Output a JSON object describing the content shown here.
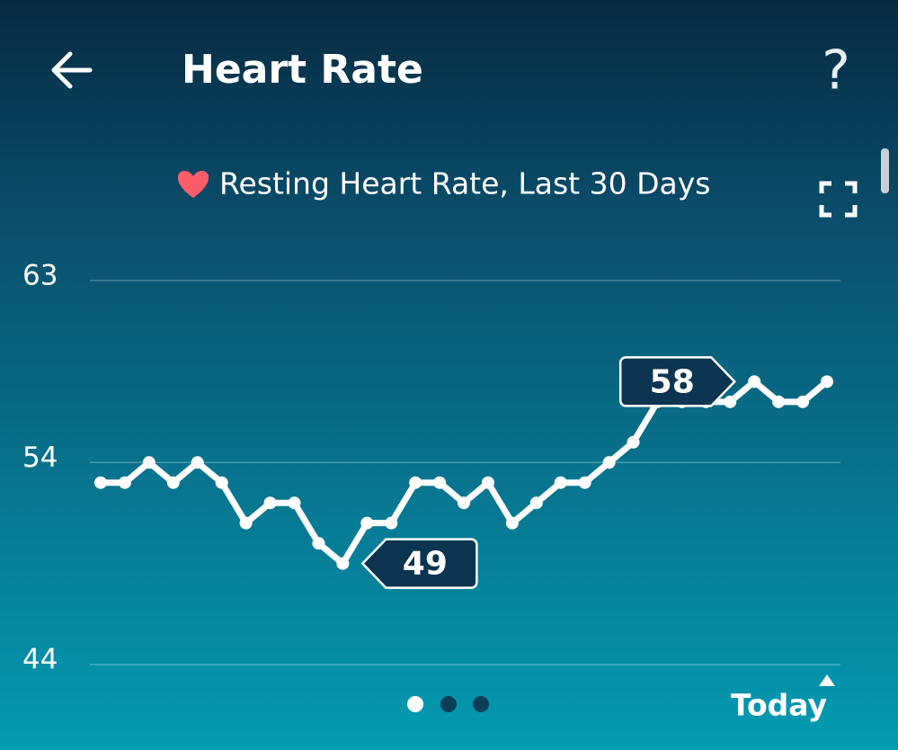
{
  "header": {
    "title": "Heart Rate",
    "help": "?"
  },
  "chart_data": {
    "type": "line",
    "title": "Resting Heart Rate, Last 30 Days",
    "categories": [
      null,
      null,
      null,
      null,
      null,
      null,
      null,
      null,
      null,
      null,
      null,
      null,
      null,
      null,
      null,
      null,
      null,
      null,
      null,
      null,
      null,
      null,
      null,
      null,
      null,
      null,
      null,
      null,
      null,
      null,
      "Today"
    ],
    "values": [
      53,
      53,
      54,
      53,
      54,
      53,
      51,
      52,
      52,
      50,
      49,
      51,
      51,
      53,
      53,
      52,
      53,
      51,
      52,
      53,
      53,
      54,
      55,
      57,
      57,
      57,
      57,
      58,
      57,
      57,
      58
    ],
    "color": "#ffffff",
    "ylim": [
      44,
      63
    ],
    "yticks": [
      44,
      54,
      63
    ],
    "grid": true,
    "annotations": [
      49,
      58
    ]
  }
}
